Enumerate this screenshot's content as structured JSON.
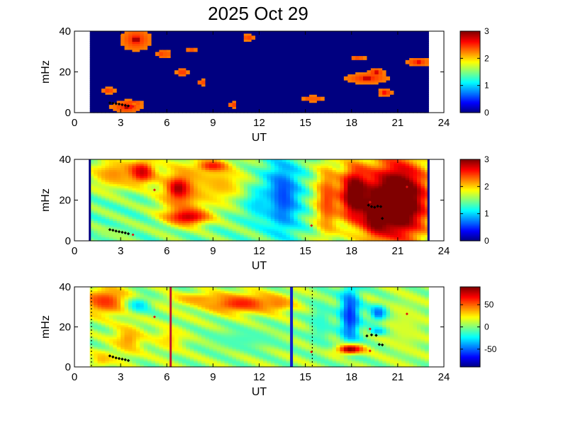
{
  "title": "2025 Oct 29",
  "chart_data": [
    {
      "type": "heatmap",
      "name_hint": "panel1",
      "xlabel": "UT",
      "ylabel": "mHz",
      "xlim": [
        0,
        24
      ],
      "ylim": [
        0,
        40
      ],
      "xticks": [
        "0",
        "3",
        "6",
        "9",
        "12",
        "15",
        "18",
        "21",
        "24"
      ],
      "yticks": [
        "0",
        "20",
        "40"
      ],
      "clim": [
        0,
        3
      ],
      "colorbar_ticks": [
        "0",
        "1",
        "2",
        "3"
      ],
      "colormap": "jet",
      "data_range": [
        1.0,
        23.0
      ],
      "background_level": 0.0,
      "blobs": [
        {
          "x": 4.0,
          "y": 36,
          "rx": 0.9,
          "ry": 5,
          "v": 3.0
        },
        {
          "x": 5.8,
          "y": 29,
          "rx": 0.5,
          "ry": 2,
          "v": 2.7
        },
        {
          "x": 7.6,
          "y": 31,
          "rx": 0.4,
          "ry": 1,
          "v": 2.4
        },
        {
          "x": 7.0,
          "y": 20,
          "rx": 0.35,
          "ry": 2,
          "v": 3.0
        },
        {
          "x": 8.3,
          "y": 15,
          "rx": 0.3,
          "ry": 1.5,
          "v": 2.5
        },
        {
          "x": 10.3,
          "y": 4,
          "rx": 0.25,
          "ry": 1.5,
          "v": 3.0
        },
        {
          "x": 11.3,
          "y": 37,
          "rx": 0.4,
          "ry": 1.5,
          "v": 2.6
        },
        {
          "x": 15.5,
          "y": 7,
          "rx": 0.6,
          "ry": 1.5,
          "v": 3.0
        },
        {
          "x": 19.0,
          "y": 17,
          "rx": 1.3,
          "ry": 2.5,
          "v": 3.0
        },
        {
          "x": 19.6,
          "y": 20,
          "rx": 0.5,
          "ry": 2,
          "v": 3.0
        },
        {
          "x": 20.2,
          "y": 10,
          "rx": 0.45,
          "ry": 2,
          "v": 3.0
        },
        {
          "x": 18.4,
          "y": 27,
          "rx": 0.5,
          "ry": 1,
          "v": 2.6
        },
        {
          "x": 22.3,
          "y": 25,
          "rx": 0.7,
          "ry": 2,
          "v": 3.0
        },
        {
          "x": 3.4,
          "y": 3,
          "rx": 0.9,
          "ry": 3,
          "v": 3.0
        },
        {
          "x": 2.2,
          "y": 11,
          "rx": 0.4,
          "ry": 1.5,
          "v": 2.8
        },
        {
          "x": 3.8,
          "y": 5,
          "rx": 0.6,
          "ry": 1,
          "v": 2.8
        }
      ],
      "markers_black": [
        [
          2.3,
          4.8
        ],
        [
          2.5,
          4.6
        ],
        [
          2.7,
          4.4
        ],
        [
          2.9,
          4.2
        ],
        [
          3.1,
          3.9
        ],
        [
          3.3,
          3.6
        ],
        [
          3.5,
          3.3
        ]
      ],
      "markers_red": [
        [
          3.8,
          3.0
        ]
      ],
      "vlines": []
    },
    {
      "type": "heatmap",
      "name_hint": "panel2",
      "xlabel": "UT",
      "ylabel": "mHz",
      "xlim": [
        0,
        24
      ],
      "ylim": [
        0,
        40
      ],
      "xticks": [
        "0",
        "3",
        "6",
        "9",
        "12",
        "15",
        "18",
        "21",
        "24"
      ],
      "yticks": [
        "0",
        "20",
        "40"
      ],
      "clim": [
        0,
        3
      ],
      "colorbar_ticks": [
        "0",
        "1",
        "2",
        "3"
      ],
      "colormap": "jet",
      "data_range": [
        1.0,
        23.0
      ],
      "background_level": 1.45,
      "edge_lines_level": 0.0,
      "blobs": [
        {
          "x": 2.5,
          "y": 33,
          "rx": 1.6,
          "ry": 8,
          "v": 2.2
        },
        {
          "x": 4.4,
          "y": 34,
          "rx": 0.9,
          "ry": 6,
          "v": 2.8
        },
        {
          "x": 7.0,
          "y": 25,
          "rx": 1.6,
          "ry": 14,
          "v": 2.4
        },
        {
          "x": 6.8,
          "y": 26,
          "rx": 0.6,
          "ry": 4,
          "v": 3.0
        },
        {
          "x": 7.4,
          "y": 12,
          "rx": 1.4,
          "ry": 4,
          "v": 2.8
        },
        {
          "x": 9.5,
          "y": 28,
          "rx": 1.8,
          "ry": 10,
          "v": 2.1
        },
        {
          "x": 9.0,
          "y": 37,
          "rx": 1.0,
          "ry": 3,
          "v": 2.6
        },
        {
          "x": 13.5,
          "y": 22,
          "rx": 1.2,
          "ry": 18,
          "v": 0.55
        },
        {
          "x": 12.0,
          "y": 18,
          "rx": 1.0,
          "ry": 8,
          "v": 1.0
        },
        {
          "x": 16.4,
          "y": 20,
          "rx": 0.8,
          "ry": 20,
          "v": 2.4
        },
        {
          "x": 18.2,
          "y": 23,
          "rx": 1.0,
          "ry": 14,
          "v": 3.2
        },
        {
          "x": 21.0,
          "y": 20,
          "rx": 2.2,
          "ry": 22,
          "v": 3.5
        },
        {
          "x": 19.6,
          "y": 14,
          "rx": 0.8,
          "ry": 10,
          "v": 3.3
        },
        {
          "x": 2.5,
          "y": 4,
          "rx": 1.2,
          "ry": 3,
          "v": 1.6
        }
      ],
      "markers_black": [
        [
          2.3,
          5.5
        ],
        [
          2.5,
          5.2
        ],
        [
          2.7,
          4.8
        ],
        [
          2.9,
          4.5
        ],
        [
          3.1,
          4.2
        ],
        [
          3.3,
          3.9
        ],
        [
          3.5,
          3.5
        ],
        [
          19.1,
          17.5
        ],
        [
          19.3,
          16.8
        ],
        [
          19.5,
          16.5
        ],
        [
          19.7,
          17.0
        ],
        [
          19.9,
          16.8
        ],
        [
          20.0,
          11.0
        ]
      ],
      "markers_red": [
        [
          3.8,
          3.0
        ],
        [
          5.2,
          25.0
        ],
        [
          15.4,
          7.5
        ],
        [
          19.2,
          19.0
        ],
        [
          21.6,
          26.5
        ]
      ],
      "vlines": []
    },
    {
      "type": "heatmap",
      "name_hint": "panel3",
      "xlabel": "UT",
      "ylabel": "mHz",
      "xlim": [
        0,
        24
      ],
      "ylim": [
        0,
        40
      ],
      "xticks": [
        "0",
        "3",
        "6",
        "9",
        "12",
        "15",
        "18",
        "21",
        "24"
      ],
      "yticks": [
        "0",
        "20",
        "40"
      ],
      "clim": [
        -90,
        90
      ],
      "colorbar_ticks": [
        "-50",
        "0",
        "50"
      ],
      "colorbar_tick_values": [
        -50,
        0,
        50
      ],
      "colormap": "jet",
      "data_range": [
        1.0,
        23.0
      ],
      "background_level": 5,
      "blobs": [
        {
          "x": 2.0,
          "y": 33,
          "rx": 1.6,
          "ry": 7,
          "v": 60
        },
        {
          "x": 3.5,
          "y": 14,
          "rx": 1.0,
          "ry": 8,
          "v": 40
        },
        {
          "x": 4.2,
          "y": 31,
          "rx": 0.8,
          "ry": 4,
          "v": -30
        },
        {
          "x": 6.2,
          "y": 14,
          "rx": 1.0,
          "ry": 6,
          "v": 30
        },
        {
          "x": 10.8,
          "y": 32,
          "rx": 2.4,
          "ry": 5,
          "v": 65
        },
        {
          "x": 8.0,
          "y": 34,
          "rx": 1.8,
          "ry": 3,
          "v": 40
        },
        {
          "x": 13.2,
          "y": 32,
          "rx": 1.0,
          "ry": 4,
          "v": 45
        },
        {
          "x": 11.0,
          "y": 14,
          "rx": 2.5,
          "ry": 6,
          "v": -10
        },
        {
          "x": 17.9,
          "y": 26,
          "rx": 0.7,
          "ry": 16,
          "v": -60
        },
        {
          "x": 17.9,
          "y": 9,
          "rx": 0.9,
          "ry": 2.5,
          "v": 90
        },
        {
          "x": 19.8,
          "y": 27,
          "rx": 0.6,
          "ry": 4,
          "v": -60
        },
        {
          "x": 19.8,
          "y": 18,
          "rx": 0.6,
          "ry": 2,
          "v": -45
        },
        {
          "x": 21.5,
          "y": 20,
          "rx": 1.3,
          "ry": 15,
          "v": 15
        },
        {
          "x": 16.0,
          "y": 22,
          "rx": 0.8,
          "ry": 12,
          "v": -15
        },
        {
          "x": 1.8,
          "y": 4,
          "rx": 0.8,
          "ry": 4,
          "v": 35
        }
      ],
      "markers_black": [
        [
          2.3,
          5.5
        ],
        [
          2.5,
          5.0
        ],
        [
          2.7,
          4.5
        ],
        [
          2.9,
          4.2
        ],
        [
          3.1,
          3.9
        ],
        [
          3.3,
          3.6
        ],
        [
          3.5,
          3.2
        ],
        [
          19.0,
          15.5
        ],
        [
          19.3,
          16.0
        ],
        [
          19.6,
          15.8
        ],
        [
          19.8,
          11.2
        ],
        [
          20.0,
          11.0
        ]
      ],
      "markers_red": [
        [
          5.2,
          25.0
        ],
        [
          15.4,
          7.5
        ],
        [
          19.2,
          19.0
        ],
        [
          19.2,
          8.0
        ],
        [
          21.6,
          26.5
        ]
      ],
      "vlines": [
        {
          "x": 6.25,
          "color": "#c0142b",
          "width": 3
        },
        {
          "x": 14.1,
          "color": "#1020c8",
          "width": 4
        },
        {
          "x": 15.45,
          "color": "#000000",
          "width": 1.2,
          "dashed": true
        },
        {
          "x": 1.1,
          "color": "#000000",
          "width": 1.2,
          "dashed": true
        }
      ]
    }
  ]
}
